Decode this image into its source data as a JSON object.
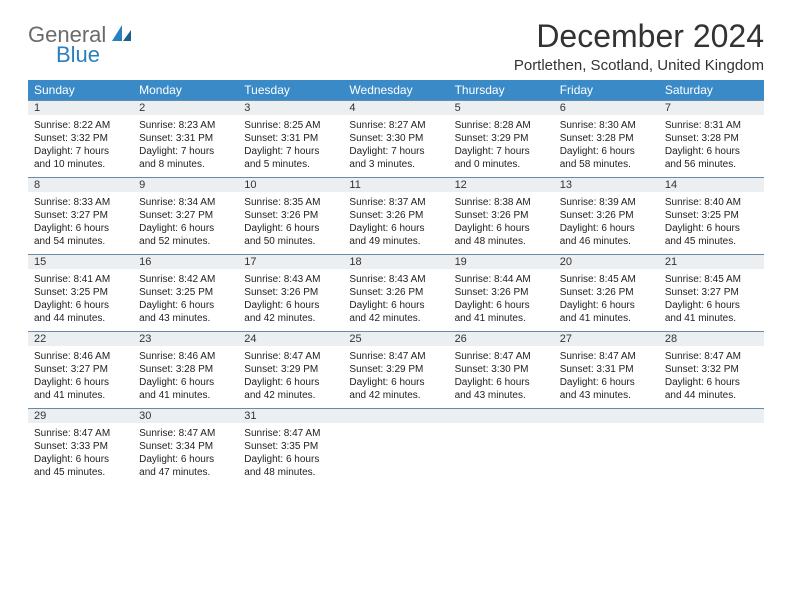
{
  "logo": {
    "general": "General",
    "blue": "Blue"
  },
  "title": "December 2024",
  "location": "Portlethen, Scotland, United Kingdom",
  "colors": {
    "header_bg": "#3a8ac8",
    "daynum_bg": "#eceff1",
    "rule": "#6a8aa8"
  },
  "weekdays": [
    "Sunday",
    "Monday",
    "Tuesday",
    "Wednesday",
    "Thursday",
    "Friday",
    "Saturday"
  ],
  "weeks": [
    [
      {
        "n": "1",
        "sr": "Sunrise: 8:22 AM",
        "ss": "Sunset: 3:32 PM",
        "dl1": "Daylight: 7 hours",
        "dl2": "and 10 minutes."
      },
      {
        "n": "2",
        "sr": "Sunrise: 8:23 AM",
        "ss": "Sunset: 3:31 PM",
        "dl1": "Daylight: 7 hours",
        "dl2": "and 8 minutes."
      },
      {
        "n": "3",
        "sr": "Sunrise: 8:25 AM",
        "ss": "Sunset: 3:31 PM",
        "dl1": "Daylight: 7 hours",
        "dl2": "and 5 minutes."
      },
      {
        "n": "4",
        "sr": "Sunrise: 8:27 AM",
        "ss": "Sunset: 3:30 PM",
        "dl1": "Daylight: 7 hours",
        "dl2": "and 3 minutes."
      },
      {
        "n": "5",
        "sr": "Sunrise: 8:28 AM",
        "ss": "Sunset: 3:29 PM",
        "dl1": "Daylight: 7 hours",
        "dl2": "and 0 minutes."
      },
      {
        "n": "6",
        "sr": "Sunrise: 8:30 AM",
        "ss": "Sunset: 3:28 PM",
        "dl1": "Daylight: 6 hours",
        "dl2": "and 58 minutes."
      },
      {
        "n": "7",
        "sr": "Sunrise: 8:31 AM",
        "ss": "Sunset: 3:28 PM",
        "dl1": "Daylight: 6 hours",
        "dl2": "and 56 minutes."
      }
    ],
    [
      {
        "n": "8",
        "sr": "Sunrise: 8:33 AM",
        "ss": "Sunset: 3:27 PM",
        "dl1": "Daylight: 6 hours",
        "dl2": "and 54 minutes."
      },
      {
        "n": "9",
        "sr": "Sunrise: 8:34 AM",
        "ss": "Sunset: 3:27 PM",
        "dl1": "Daylight: 6 hours",
        "dl2": "and 52 minutes."
      },
      {
        "n": "10",
        "sr": "Sunrise: 8:35 AM",
        "ss": "Sunset: 3:26 PM",
        "dl1": "Daylight: 6 hours",
        "dl2": "and 50 minutes."
      },
      {
        "n": "11",
        "sr": "Sunrise: 8:37 AM",
        "ss": "Sunset: 3:26 PM",
        "dl1": "Daylight: 6 hours",
        "dl2": "and 49 minutes."
      },
      {
        "n": "12",
        "sr": "Sunrise: 8:38 AM",
        "ss": "Sunset: 3:26 PM",
        "dl1": "Daylight: 6 hours",
        "dl2": "and 48 minutes."
      },
      {
        "n": "13",
        "sr": "Sunrise: 8:39 AM",
        "ss": "Sunset: 3:26 PM",
        "dl1": "Daylight: 6 hours",
        "dl2": "and 46 minutes."
      },
      {
        "n": "14",
        "sr": "Sunrise: 8:40 AM",
        "ss": "Sunset: 3:25 PM",
        "dl1": "Daylight: 6 hours",
        "dl2": "and 45 minutes."
      }
    ],
    [
      {
        "n": "15",
        "sr": "Sunrise: 8:41 AM",
        "ss": "Sunset: 3:25 PM",
        "dl1": "Daylight: 6 hours",
        "dl2": "and 44 minutes."
      },
      {
        "n": "16",
        "sr": "Sunrise: 8:42 AM",
        "ss": "Sunset: 3:25 PM",
        "dl1": "Daylight: 6 hours",
        "dl2": "and 43 minutes."
      },
      {
        "n": "17",
        "sr": "Sunrise: 8:43 AM",
        "ss": "Sunset: 3:26 PM",
        "dl1": "Daylight: 6 hours",
        "dl2": "and 42 minutes."
      },
      {
        "n": "18",
        "sr": "Sunrise: 8:43 AM",
        "ss": "Sunset: 3:26 PM",
        "dl1": "Daylight: 6 hours",
        "dl2": "and 42 minutes."
      },
      {
        "n": "19",
        "sr": "Sunrise: 8:44 AM",
        "ss": "Sunset: 3:26 PM",
        "dl1": "Daylight: 6 hours",
        "dl2": "and 41 minutes."
      },
      {
        "n": "20",
        "sr": "Sunrise: 8:45 AM",
        "ss": "Sunset: 3:26 PM",
        "dl1": "Daylight: 6 hours",
        "dl2": "and 41 minutes."
      },
      {
        "n": "21",
        "sr": "Sunrise: 8:45 AM",
        "ss": "Sunset: 3:27 PM",
        "dl1": "Daylight: 6 hours",
        "dl2": "and 41 minutes."
      }
    ],
    [
      {
        "n": "22",
        "sr": "Sunrise: 8:46 AM",
        "ss": "Sunset: 3:27 PM",
        "dl1": "Daylight: 6 hours",
        "dl2": "and 41 minutes."
      },
      {
        "n": "23",
        "sr": "Sunrise: 8:46 AM",
        "ss": "Sunset: 3:28 PM",
        "dl1": "Daylight: 6 hours",
        "dl2": "and 41 minutes."
      },
      {
        "n": "24",
        "sr": "Sunrise: 8:47 AM",
        "ss": "Sunset: 3:29 PM",
        "dl1": "Daylight: 6 hours",
        "dl2": "and 42 minutes."
      },
      {
        "n": "25",
        "sr": "Sunrise: 8:47 AM",
        "ss": "Sunset: 3:29 PM",
        "dl1": "Daylight: 6 hours",
        "dl2": "and 42 minutes."
      },
      {
        "n": "26",
        "sr": "Sunrise: 8:47 AM",
        "ss": "Sunset: 3:30 PM",
        "dl1": "Daylight: 6 hours",
        "dl2": "and 43 minutes."
      },
      {
        "n": "27",
        "sr": "Sunrise: 8:47 AM",
        "ss": "Sunset: 3:31 PM",
        "dl1": "Daylight: 6 hours",
        "dl2": "and 43 minutes."
      },
      {
        "n": "28",
        "sr": "Sunrise: 8:47 AM",
        "ss": "Sunset: 3:32 PM",
        "dl1": "Daylight: 6 hours",
        "dl2": "and 44 minutes."
      }
    ],
    [
      {
        "n": "29",
        "sr": "Sunrise: 8:47 AM",
        "ss": "Sunset: 3:33 PM",
        "dl1": "Daylight: 6 hours",
        "dl2": "and 45 minutes."
      },
      {
        "n": "30",
        "sr": "Sunrise: 8:47 AM",
        "ss": "Sunset: 3:34 PM",
        "dl1": "Daylight: 6 hours",
        "dl2": "and 47 minutes."
      },
      {
        "n": "31",
        "sr": "Sunrise: 8:47 AM",
        "ss": "Sunset: 3:35 PM",
        "dl1": "Daylight: 6 hours",
        "dl2": "and 48 minutes."
      },
      null,
      null,
      null,
      null
    ]
  ]
}
